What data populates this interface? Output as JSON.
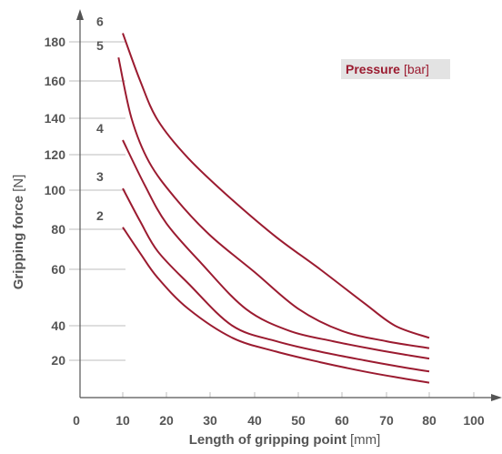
{
  "chart_data": {
    "type": "line",
    "xlabel": "Length of gripping point",
    "xlabel_unit": "[mm]",
    "ylabel": "Gripping force",
    "ylabel_unit": "[N]",
    "legend_title": "Pressure",
    "legend_unit": "[bar]",
    "legend_position": "top-right",
    "x_ticks": [
      0,
      10,
      20,
      30,
      40,
      50,
      60,
      70,
      80,
      100
    ],
    "y_ticks": [
      20,
      40,
      60,
      80,
      100,
      120,
      140,
      160,
      180
    ],
    "colors": {
      "series": "#9b1b30",
      "axis": "#555555",
      "legend_bg": "#e3e3e3"
    },
    "series": [
      {
        "name": "2",
        "points": [
          [
            10,
            81
          ],
          [
            14,
            68
          ],
          [
            18,
            57
          ],
          [
            25,
            46
          ],
          [
            35,
            33
          ],
          [
            45,
            25
          ],
          [
            55,
            19
          ],
          [
            65,
            14
          ],
          [
            72,
            11
          ],
          [
            80,
            8
          ]
        ]
      },
      {
        "name": "3",
        "points": [
          [
            10,
            101
          ],
          [
            14,
            84
          ],
          [
            18,
            69
          ],
          [
            25,
            55
          ],
          [
            35,
            40
          ],
          [
            45,
            31
          ],
          [
            55,
            25
          ],
          [
            65,
            20
          ],
          [
            72,
            17
          ],
          [
            80,
            14
          ]
        ]
      },
      {
        "name": "4",
        "points": [
          [
            10,
            128
          ],
          [
            15,
            103
          ],
          [
            20,
            83
          ],
          [
            28,
            63
          ],
          [
            38,
            46
          ],
          [
            48,
            37
          ],
          [
            58,
            31
          ],
          [
            68,
            26
          ],
          [
            75,
            23
          ],
          [
            80,
            21
          ]
        ]
      },
      {
        "name": "5",
        "points": [
          [
            9,
            172
          ],
          [
            12,
            140
          ],
          [
            16,
            116
          ],
          [
            22,
            96
          ],
          [
            30,
            77
          ],
          [
            40,
            59
          ],
          [
            50,
            46
          ],
          [
            60,
            37
          ],
          [
            70,
            31
          ],
          [
            80,
            27
          ]
        ]
      },
      {
        "name": "6",
        "points": [
          [
            10,
            185
          ],
          [
            14,
            160
          ],
          [
            18,
            139
          ],
          [
            25,
            118
          ],
          [
            35,
            95
          ],
          [
            45,
            76
          ],
          [
            55,
            60
          ],
          [
            65,
            48
          ],
          [
            72,
            40
          ],
          [
            80,
            33
          ]
        ]
      }
    ]
  }
}
